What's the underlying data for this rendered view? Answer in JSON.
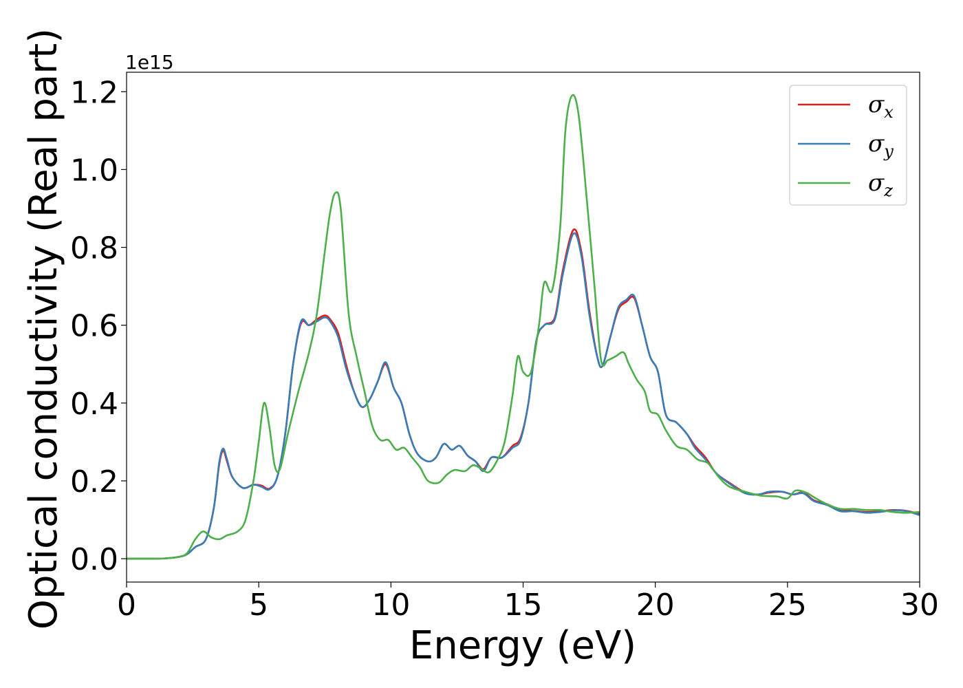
{
  "chart_data": {
    "type": "line",
    "xlabel": "Energy (eV)",
    "ylabel": "Optical conductivity (Real part)",
    "y_offset_label": "1e15",
    "xlim": [
      0,
      30
    ],
    "ylim": [
      -0.06,
      1.25
    ],
    "x_ticks": [
      0,
      5,
      10,
      15,
      20,
      25,
      30
    ],
    "x_tick_labels": [
      "0",
      "5",
      "10",
      "15",
      "20",
      "25",
      "30"
    ],
    "y_ticks": [
      0.0,
      0.2,
      0.4,
      0.6,
      0.8,
      1.0,
      1.2
    ],
    "y_tick_labels": [
      "0.0",
      "0.2",
      "0.4",
      "0.6",
      "0.8",
      "1.0",
      "1.2"
    ],
    "grid": false,
    "legend_position": "top-right",
    "series": [
      {
        "name": "σ",
        "subscript": "x",
        "color": "#e41a1c",
        "points": [
          [
            0,
            0
          ],
          [
            1,
            0
          ],
          [
            1.5,
            0.001
          ],
          [
            2,
            0.005
          ],
          [
            2.3,
            0.012
          ],
          [
            2.6,
            0.03
          ],
          [
            3,
            0.05
          ],
          [
            3.3,
            0.13
          ],
          [
            3.5,
            0.24
          ],
          [
            3.65,
            0.278
          ],
          [
            3.8,
            0.25
          ],
          [
            4,
            0.21
          ],
          [
            4.4,
            0.182
          ],
          [
            4.8,
            0.19
          ],
          [
            5.1,
            0.188
          ],
          [
            5.4,
            0.18
          ],
          [
            5.7,
            0.21
          ],
          [
            6,
            0.32
          ],
          [
            6.3,
            0.5
          ],
          [
            6.6,
            0.605
          ],
          [
            6.9,
            0.6
          ],
          [
            7.2,
            0.615
          ],
          [
            7.5,
            0.625
          ],
          [
            7.7,
            0.615
          ],
          [
            8,
            0.58
          ],
          [
            8.3,
            0.5
          ],
          [
            8.6,
            0.43
          ],
          [
            8.9,
            0.39
          ],
          [
            9.2,
            0.41
          ],
          [
            9.5,
            0.455
          ],
          [
            9.8,
            0.5
          ],
          [
            10.1,
            0.44
          ],
          [
            10.4,
            0.4
          ],
          [
            10.7,
            0.32
          ],
          [
            11,
            0.27
          ],
          [
            11.4,
            0.25
          ],
          [
            11.7,
            0.26
          ],
          [
            12,
            0.295
          ],
          [
            12.3,
            0.28
          ],
          [
            12.6,
            0.29
          ],
          [
            12.9,
            0.265
          ],
          [
            13.2,
            0.25
          ],
          [
            13.5,
            0.23
          ],
          [
            13.8,
            0.26
          ],
          [
            14.2,
            0.26
          ],
          [
            14.6,
            0.29
          ],
          [
            14.9,
            0.31
          ],
          [
            15.2,
            0.4
          ],
          [
            15.5,
            0.56
          ],
          [
            15.8,
            0.6
          ],
          [
            16.2,
            0.62
          ],
          [
            16.5,
            0.74
          ],
          [
            16.9,
            0.845
          ],
          [
            17.2,
            0.79
          ],
          [
            17.5,
            0.64
          ],
          [
            17.8,
            0.52
          ],
          [
            18,
            0.495
          ],
          [
            18.3,
            0.57
          ],
          [
            18.6,
            0.64
          ],
          [
            18.9,
            0.66
          ],
          [
            19.2,
            0.67
          ],
          [
            19.5,
            0.6
          ],
          [
            19.8,
            0.52
          ],
          [
            20.1,
            0.48
          ],
          [
            20.4,
            0.37
          ],
          [
            20.8,
            0.35
          ],
          [
            21.2,
            0.32
          ],
          [
            21.5,
            0.29
          ],
          [
            21.9,
            0.26
          ],
          [
            22.3,
            0.22
          ],
          [
            22.8,
            0.195
          ],
          [
            23.4,
            0.17
          ],
          [
            23.9,
            0.165
          ],
          [
            24.3,
            0.17
          ],
          [
            24.8,
            0.172
          ],
          [
            25.2,
            0.165
          ],
          [
            25.6,
            0.17
          ],
          [
            26,
            0.15
          ],
          [
            26.5,
            0.14
          ],
          [
            27,
            0.125
          ],
          [
            27.5,
            0.123
          ],
          [
            28,
            0.12
          ],
          [
            28.5,
            0.122
          ],
          [
            29,
            0.125
          ],
          [
            29.5,
            0.123
          ],
          [
            30,
            0.115
          ]
        ]
      },
      {
        "name": "σ",
        "subscript": "y",
        "color": "#377eb8",
        "points": [
          [
            0,
            0
          ],
          [
            1,
            0
          ],
          [
            1.5,
            0.001
          ],
          [
            2,
            0.005
          ],
          [
            2.3,
            0.012
          ],
          [
            2.6,
            0.03
          ],
          [
            3,
            0.05
          ],
          [
            3.3,
            0.13
          ],
          [
            3.5,
            0.245
          ],
          [
            3.65,
            0.283
          ],
          [
            3.8,
            0.255
          ],
          [
            4,
            0.21
          ],
          [
            4.4,
            0.182
          ],
          [
            4.8,
            0.19
          ],
          [
            5.1,
            0.185
          ],
          [
            5.4,
            0.178
          ],
          [
            5.7,
            0.21
          ],
          [
            6,
            0.32
          ],
          [
            6.3,
            0.5
          ],
          [
            6.6,
            0.61
          ],
          [
            6.9,
            0.6
          ],
          [
            7.2,
            0.61
          ],
          [
            7.5,
            0.62
          ],
          [
            7.7,
            0.61
          ],
          [
            8,
            0.57
          ],
          [
            8.3,
            0.49
          ],
          [
            8.6,
            0.43
          ],
          [
            8.9,
            0.39
          ],
          [
            9.2,
            0.41
          ],
          [
            9.5,
            0.455
          ],
          [
            9.8,
            0.505
          ],
          [
            10.1,
            0.44
          ],
          [
            10.4,
            0.4
          ],
          [
            10.7,
            0.32
          ],
          [
            11,
            0.27
          ],
          [
            11.4,
            0.25
          ],
          [
            11.7,
            0.26
          ],
          [
            12,
            0.295
          ],
          [
            12.3,
            0.28
          ],
          [
            12.6,
            0.29
          ],
          [
            12.9,
            0.265
          ],
          [
            13.2,
            0.25
          ],
          [
            13.5,
            0.225
          ],
          [
            13.8,
            0.26
          ],
          [
            14.2,
            0.26
          ],
          [
            14.6,
            0.285
          ],
          [
            14.9,
            0.305
          ],
          [
            15.2,
            0.4
          ],
          [
            15.5,
            0.56
          ],
          [
            15.8,
            0.6
          ],
          [
            16.2,
            0.615
          ],
          [
            16.5,
            0.73
          ],
          [
            16.9,
            0.835
          ],
          [
            17.2,
            0.78
          ],
          [
            17.5,
            0.63
          ],
          [
            17.8,
            0.52
          ],
          [
            18,
            0.495
          ],
          [
            18.3,
            0.57
          ],
          [
            18.6,
            0.645
          ],
          [
            18.9,
            0.665
          ],
          [
            19.2,
            0.675
          ],
          [
            19.5,
            0.6
          ],
          [
            19.8,
            0.52
          ],
          [
            20.1,
            0.48
          ],
          [
            20.4,
            0.37
          ],
          [
            20.8,
            0.35
          ],
          [
            21.2,
            0.32
          ],
          [
            21.5,
            0.285
          ],
          [
            21.9,
            0.255
          ],
          [
            22.3,
            0.22
          ],
          [
            22.8,
            0.193
          ],
          [
            23.4,
            0.168
          ],
          [
            23.9,
            0.165
          ],
          [
            24.3,
            0.172
          ],
          [
            24.8,
            0.172
          ],
          [
            25.2,
            0.165
          ],
          [
            25.6,
            0.168
          ],
          [
            26,
            0.148
          ],
          [
            26.5,
            0.138
          ],
          [
            27,
            0.122
          ],
          [
            27.5,
            0.122
          ],
          [
            28,
            0.118
          ],
          [
            28.5,
            0.12
          ],
          [
            29,
            0.124
          ],
          [
            29.5,
            0.122
          ],
          [
            30,
            0.112
          ]
        ]
      },
      {
        "name": "σ",
        "subscript": "z",
        "color": "#4daf4a",
        "points": [
          [
            0,
            0
          ],
          [
            1,
            0
          ],
          [
            1.5,
            0.001
          ],
          [
            2,
            0.005
          ],
          [
            2.3,
            0.015
          ],
          [
            2.6,
            0.05
          ],
          [
            2.9,
            0.07
          ],
          [
            3.2,
            0.055
          ],
          [
            3.5,
            0.05
          ],
          [
            3.8,
            0.06
          ],
          [
            4.2,
            0.07
          ],
          [
            4.5,
            0.1
          ],
          [
            4.8,
            0.2
          ],
          [
            5,
            0.3
          ],
          [
            5.2,
            0.4
          ],
          [
            5.4,
            0.34
          ],
          [
            5.6,
            0.24
          ],
          [
            5.8,
            0.23
          ],
          [
            6.1,
            0.32
          ],
          [
            6.5,
            0.43
          ],
          [
            6.9,
            0.53
          ],
          [
            7.2,
            0.63
          ],
          [
            7.5,
            0.79
          ],
          [
            7.7,
            0.89
          ],
          [
            7.9,
            0.94
          ],
          [
            8.1,
            0.9
          ],
          [
            8.4,
            0.63
          ],
          [
            8.7,
            0.52
          ],
          [
            9,
            0.43
          ],
          [
            9.3,
            0.34
          ],
          [
            9.6,
            0.305
          ],
          [
            9.9,
            0.305
          ],
          [
            10.2,
            0.28
          ],
          [
            10.5,
            0.285
          ],
          [
            10.8,
            0.26
          ],
          [
            11.1,
            0.235
          ],
          [
            11.4,
            0.2
          ],
          [
            11.8,
            0.195
          ],
          [
            12.1,
            0.215
          ],
          [
            12.4,
            0.228
          ],
          [
            12.8,
            0.225
          ],
          [
            13.1,
            0.24
          ],
          [
            13.4,
            0.232
          ],
          [
            13.7,
            0.222
          ],
          [
            14,
            0.25
          ],
          [
            14.3,
            0.3
          ],
          [
            14.6,
            0.42
          ],
          [
            14.8,
            0.52
          ],
          [
            15,
            0.48
          ],
          [
            15.3,
            0.48
          ],
          [
            15.6,
            0.6
          ],
          [
            15.8,
            0.71
          ],
          [
            16.1,
            0.69
          ],
          [
            16.4,
            0.85
          ],
          [
            16.6,
            1.1
          ],
          [
            16.85,
            1.19
          ],
          [
            17.1,
            1.14
          ],
          [
            17.4,
            0.93
          ],
          [
            17.7,
            0.7
          ],
          [
            17.95,
            0.51
          ],
          [
            18.2,
            0.51
          ],
          [
            18.5,
            0.52
          ],
          [
            18.8,
            0.53
          ],
          [
            19,
            0.5
          ],
          [
            19.3,
            0.46
          ],
          [
            19.6,
            0.43
          ],
          [
            19.8,
            0.38
          ],
          [
            20.1,
            0.37
          ],
          [
            20.4,
            0.33
          ],
          [
            20.8,
            0.29
          ],
          [
            21.2,
            0.28
          ],
          [
            21.6,
            0.255
          ],
          [
            22,
            0.245
          ],
          [
            22.4,
            0.21
          ],
          [
            22.8,
            0.185
          ],
          [
            23.4,
            0.172
          ],
          [
            24,
            0.162
          ],
          [
            24.6,
            0.16
          ],
          [
            25,
            0.155
          ],
          [
            25.3,
            0.175
          ],
          [
            25.7,
            0.17
          ],
          [
            26,
            0.158
          ],
          [
            26.5,
            0.14
          ],
          [
            27,
            0.128
          ],
          [
            27.5,
            0.128
          ],
          [
            28,
            0.125
          ],
          [
            28.5,
            0.125
          ],
          [
            29,
            0.12
          ],
          [
            29.5,
            0.118
          ],
          [
            30,
            0.12
          ]
        ]
      }
    ]
  }
}
